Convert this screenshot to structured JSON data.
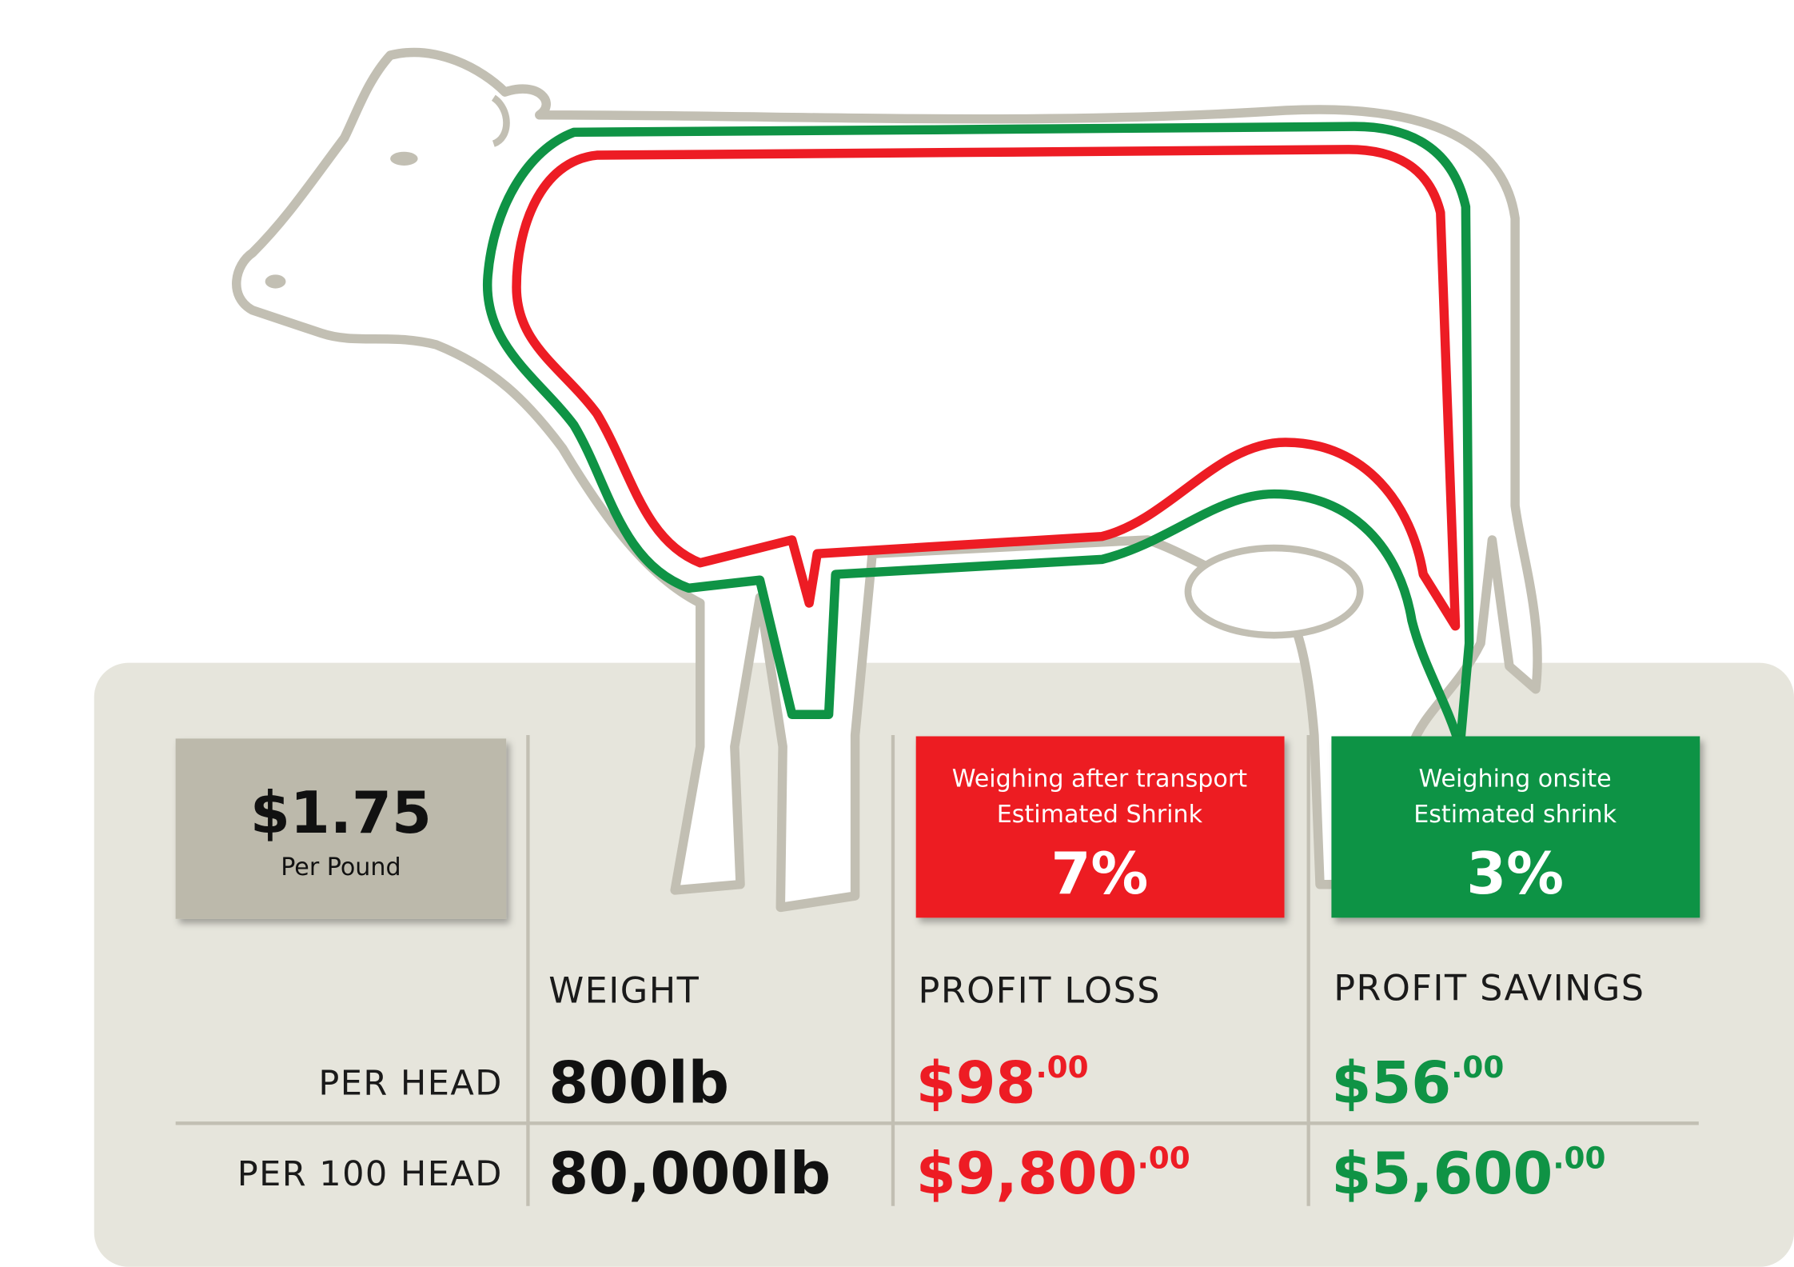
{
  "price": {
    "amount": "$1.75",
    "unit": "Per Pound"
  },
  "boxes": [
    {
      "line1": "Weighing after transport",
      "line2": "Estimated Shrink",
      "value": "7%"
    },
    {
      "line1": "Weighing onsite",
      "line2": "Estimated shrink",
      "value": "3%"
    }
  ],
  "table": {
    "headers": [
      "WEIGHT",
      "PROFIT LOSS",
      "PROFIT SAVINGS"
    ],
    "rows": [
      {
        "label": "PER HEAD",
        "weight": "800lb",
        "loss": "$98",
        "loss_cents": ".00",
        "savings": "$56",
        "savings_cents": ".00"
      },
      {
        "label": "PER 100 HEAD",
        "weight": "80,000lb",
        "loss": "$9,800",
        "loss_cents": ".00",
        "savings": "$5,600",
        "savings_cents": ".00"
      }
    ]
  }
}
